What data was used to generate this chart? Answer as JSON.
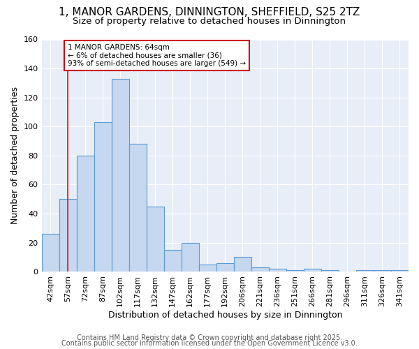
{
  "title": "1, MANOR GARDENS, DINNINGTON, SHEFFIELD, S25 2TZ",
  "subtitle": "Size of property relative to detached houses in Dinnington",
  "xlabel": "Distribution of detached houses by size in Dinnington",
  "ylabel": "Number of detached properties",
  "categories": [
    "42sqm",
    "57sqm",
    "72sqm",
    "87sqm",
    "102sqm",
    "117sqm",
    "132sqm",
    "147sqm",
    "162sqm",
    "177sqm",
    "192sqm",
    "206sqm",
    "221sqm",
    "236sqm",
    "251sqm",
    "266sqm",
    "281sqm",
    "296sqm",
    "311sqm",
    "326sqm",
    "341sqm"
  ],
  "values": [
    26,
    50,
    80,
    103,
    133,
    88,
    45,
    15,
    20,
    5,
    6,
    10,
    3,
    2,
    1,
    2,
    1,
    0,
    1,
    1,
    1
  ],
  "bar_color": "#c5d8f0",
  "bar_edge_color": "#5b9bd5",
  "red_line_x": 1,
  "annotation_text": "1 MANOR GARDENS: 64sqm\n← 6% of detached houses are smaller (36)\n93% of semi-detached houses are larger (549) →",
  "annotation_box_facecolor": "#ffffff",
  "annotation_box_edgecolor": "#cc0000",
  "ylim": [
    0,
    160
  ],
  "yticks": [
    0,
    20,
    40,
    60,
    80,
    100,
    120,
    140,
    160
  ],
  "fig_facecolor": "#ffffff",
  "ax_facecolor": "#e8eef8",
  "grid_color": "#ffffff",
  "title_fontsize": 11,
  "subtitle_fontsize": 9.5,
  "axis_label_fontsize": 9,
  "tick_fontsize": 8,
  "footer_fontsize": 7,
  "footer1": "Contains HM Land Registry data © Crown copyright and database right 2025.",
  "footer2": "Contains public sector information licensed under the Open Government Licence v3.0."
}
